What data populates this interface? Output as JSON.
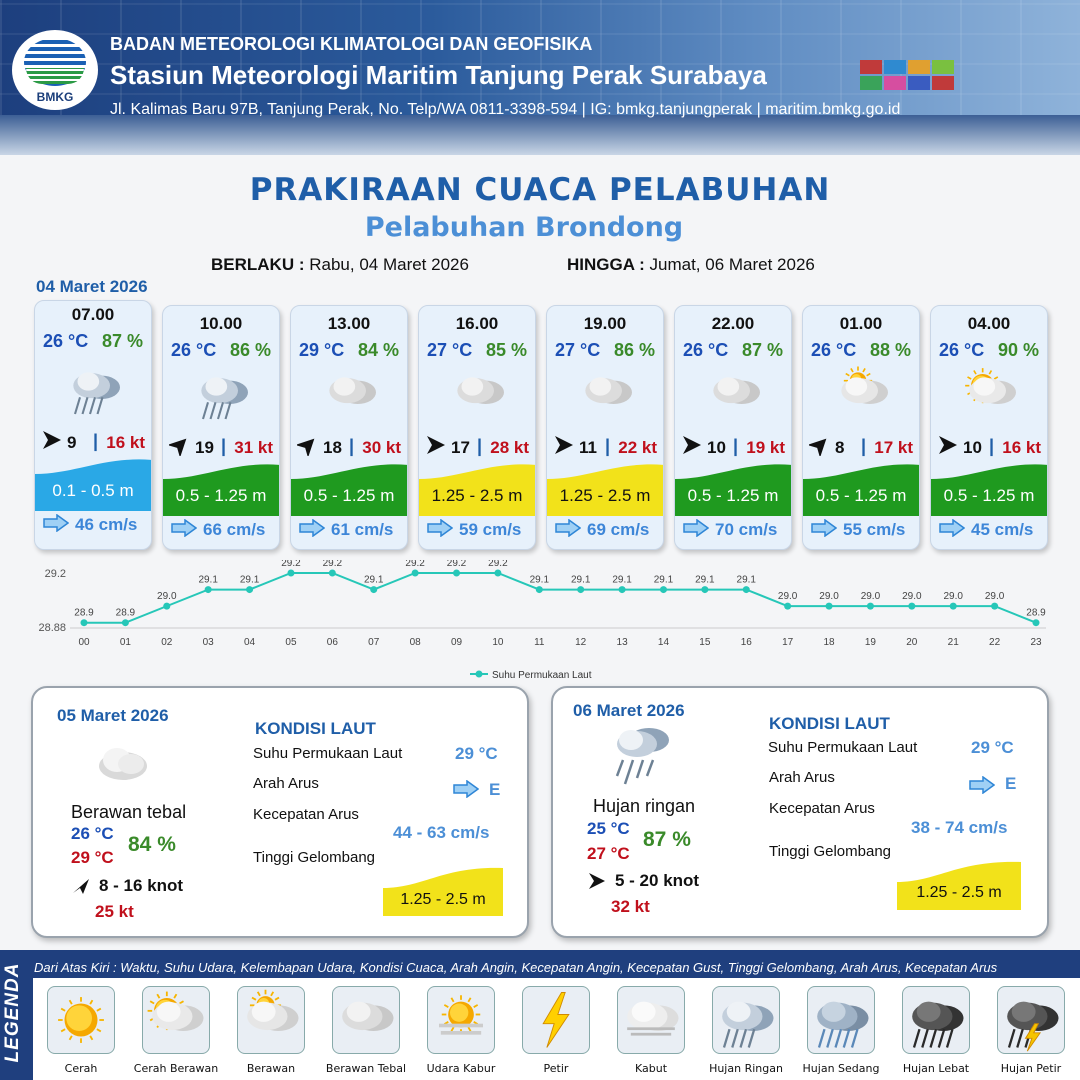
{
  "header": {
    "agency": "BADAN METEOROLOGI KLIMATOLOGI DAN GEOFISIKA",
    "station": "Stasiun Meteorologi Maritim Tanjung Perak Surabaya",
    "address": "Jl. Kalimas Baru 97B, Tanjung Perak, No. Telp/WA 0811-3398-594 | IG: bmkg.tanjungperak | maritim.bmkg.go.id",
    "logo_text": "BMKG"
  },
  "title": "PRAKIRAAN CUACA PELABUHAN",
  "subtitle": "Pelabuhan Brondong",
  "validity": {
    "from_label": "BERLAKU :",
    "from": "Rabu, 04 Maret 2026",
    "to_label": "HINGGA :",
    "to": "Jumat, 06 Maret 2026"
  },
  "day0_date": "04 Maret 2026",
  "cards": [
    {
      "time": "07.00",
      "temp": "26 °C",
      "hum": "87 %",
      "icon": "rain-icon",
      "wind_dir": "E",
      "wind": "9",
      "gust": "16 kt",
      "wave": "0.1 - 0.5 m",
      "wave_color": "#2aa8e6",
      "current": "46 cm/s"
    },
    {
      "time": "10.00",
      "temp": "26 °C",
      "hum": "86 %",
      "icon": "rain-icon",
      "wind_dir": "NE",
      "wind": "19",
      "gust": "31 kt",
      "wave": "0.5 - 1.25 m",
      "wave_color": "#1f9a1f",
      "current": "66 cm/s"
    },
    {
      "time": "13.00",
      "temp": "29 °C",
      "hum": "84 %",
      "icon": "overcast-icon",
      "wind_dir": "NE",
      "wind": "18",
      "gust": "30 kt",
      "wave": "0.5 - 1.25 m",
      "wave_color": "#1f9a1f",
      "current": "61 cm/s"
    },
    {
      "time": "16.00",
      "temp": "27 °C",
      "hum": "85 %",
      "icon": "overcast-icon",
      "wind_dir": "E",
      "wind": "17",
      "gust": "28 kt",
      "wave": "1.25 - 2.5 m",
      "wave_color": "#f2e21a",
      "current": "59 cm/s"
    },
    {
      "time": "19.00",
      "temp": "27 °C",
      "hum": "86 %",
      "icon": "overcast-icon",
      "wind_dir": "E",
      "wind": "11",
      "gust": "22 kt",
      "wave": "1.25 - 2.5 m",
      "wave_color": "#f2e21a",
      "current": "69 cm/s"
    },
    {
      "time": "22.00",
      "temp": "26 °C",
      "hum": "87 %",
      "icon": "overcast-icon",
      "wind_dir": "E",
      "wind": "10",
      "gust": "19 kt",
      "wave": "0.5 - 1.25 m",
      "wave_color": "#1f9a1f",
      "current": "70 cm/s"
    },
    {
      "time": "01.00",
      "temp": "26 °C",
      "hum": "88 %",
      "icon": "cloudy-icon",
      "wind_dir": "NE",
      "wind": "8",
      "gust": "17 kt",
      "wave": "0.5 - 1.25 m",
      "wave_color": "#1f9a1f",
      "current": "55 cm/s"
    },
    {
      "time": "04.00",
      "temp": "26 °C",
      "hum": "90 %",
      "icon": "partly-cloudy-icon",
      "wind_dir": "E",
      "wind": "10",
      "gust": "16 kt",
      "wave": "0.5 - 1.25 m",
      "wave_color": "#1f9a1f",
      "current": "45 cm/s"
    }
  ],
  "chart_data": {
    "type": "line",
    "title": "",
    "x": [
      "00",
      "01",
      "02",
      "03",
      "04",
      "05",
      "06",
      "07",
      "08",
      "09",
      "10",
      "11",
      "12",
      "13",
      "14",
      "15",
      "16",
      "17",
      "18",
      "19",
      "20",
      "21",
      "22",
      "23"
    ],
    "series": [
      {
        "name": "Suhu Permukaan Laut",
        "values": [
          28.9,
          28.9,
          29.0,
          29.1,
          29.1,
          29.2,
          29.2,
          29.1,
          29.2,
          29.2,
          29.2,
          29.1,
          29.1,
          29.1,
          29.1,
          29.1,
          29.1,
          29.0,
          29.0,
          29.0,
          29.0,
          29.0,
          29.0,
          28.9
        ]
      }
    ],
    "yticks": [
      "29.2",
      "28.88"
    ],
    "ylim": [
      28.88,
      29.2
    ],
    "color": "#26c7b8",
    "legend": "bottom"
  },
  "day1": {
    "date": "05 Maret 2026",
    "weather": "Berawan tebal",
    "icon": "overcast-icon",
    "tmin": "26 °C",
    "tmax": "29 °C",
    "hum": "84 %",
    "wind": "8  - 16 knot",
    "gust": "25 kt",
    "sea_title": "KONDISI LAUT",
    "sst_label": "Suhu Permukaan Laut",
    "sst": "29 °C",
    "dir_label": "Arah Arus",
    "dir": "E",
    "spd_label": "Kecepatan Arus",
    "spd": "44  - 63 cm/s",
    "wave_label": "Tinggi Gelombang",
    "wave": "1.25 - 2.5 m"
  },
  "day2": {
    "date": "06 Maret 2026",
    "weather": "Hujan ringan",
    "icon": "rain-icon",
    "tmin": "25 °C",
    "tmax": "27 °C",
    "hum": "87 %",
    "wind": "5  - 20 knot",
    "gust": "32 kt",
    "sea_title": "KONDISI LAUT",
    "sst_label": "Suhu Permukaan Laut",
    "sst": "29 °C",
    "dir_label": "Arah Arus",
    "dir": "E",
    "spd_label": "Kecepatan Arus",
    "spd": "38 - 74 cm/s",
    "wave_label": "Tinggi Gelombang",
    "wave": "1.25 - 2.5 m"
  },
  "legend": {
    "title": "LEGENDA",
    "caption": "Dari Atas Kiri : Waktu, Suhu Udara, Kelembapan Udara, Kondisi Cuaca, Arah Angin, Kecepatan Angin, Kecepatan Gust, Tinggi Gelombang, Arah Arus, Kecepatan Arus",
    "items": [
      {
        "label": "Cerah",
        "icon": "sun-icon"
      },
      {
        "label": "Cerah Berawan",
        "icon": "partly-cloudy-icon"
      },
      {
        "label": "Berawan",
        "icon": "cloudy-icon"
      },
      {
        "label": "Berawan Tebal",
        "icon": "overcast-icon"
      },
      {
        "label": "Udara Kabur",
        "icon": "haze-icon"
      },
      {
        "label": "Petir",
        "icon": "lightning-icon"
      },
      {
        "label": "Kabut",
        "icon": "fog-icon"
      },
      {
        "label": "Hujan Ringan",
        "icon": "light-rain-icon"
      },
      {
        "label": "Hujan Sedang",
        "icon": "moderate-rain-icon"
      },
      {
        "label": "Hujan Lebat",
        "icon": "heavy-rain-icon"
      },
      {
        "label": "Hujan Petir",
        "icon": "thunderstorm-icon"
      }
    ]
  }
}
